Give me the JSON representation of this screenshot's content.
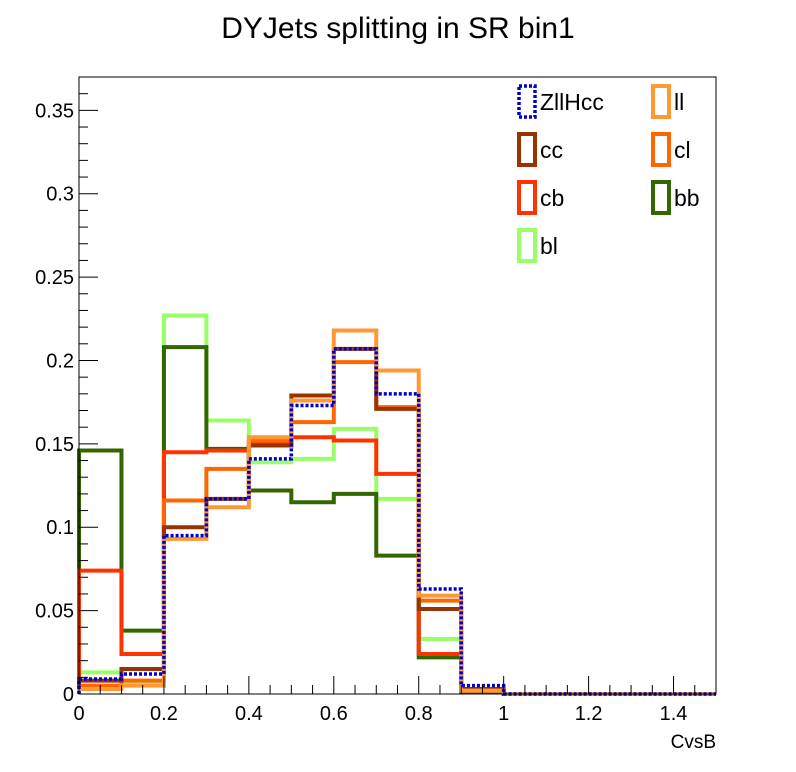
{
  "chart_data": {
    "type": "histogram",
    "title": "DYJets splitting in SR bin1",
    "xlabel": "CvsB",
    "ylabel": "",
    "xlim": [
      0,
      1.5
    ],
    "ylim": [
      0,
      0.37
    ],
    "bin_edges": [
      0,
      0.1,
      0.2,
      0.3,
      0.4,
      0.5,
      0.6,
      0.7,
      0.8,
      0.9,
      1.0,
      1.1,
      1.2,
      1.3,
      1.4,
      1.5
    ],
    "x_ticks": [
      "0",
      "0.2",
      "0.4",
      "0.6",
      "0.8",
      "1",
      "1.2",
      "1.4"
    ],
    "x_tick_values": [
      0,
      0.2,
      0.4,
      0.6,
      0.8,
      1.0,
      1.2,
      1.4
    ],
    "y_ticks": [
      "0",
      "0.05",
      "0.1",
      "0.15",
      "0.2",
      "0.25",
      "0.3",
      "0.35"
    ],
    "y_tick_values": [
      0,
      0.05,
      0.1,
      0.15,
      0.2,
      0.25,
      0.3,
      0.35
    ],
    "grid": false,
    "legend_position": "top-right",
    "series": [
      {
        "name": "ZllHcc",
        "color": "#0000cc",
        "dashed": true,
        "values": [
          0.009,
          0.012,
          0.095,
          0.117,
          0.141,
          0.173,
          0.207,
          0.18,
          0.063,
          0.005,
          0.0,
          0.0,
          0.0,
          0.0,
          0.0
        ]
      },
      {
        "name": "ll",
        "color": "#ff9933",
        "dashed": false,
        "values": [
          0.003,
          0.005,
          0.093,
          0.112,
          0.154,
          0.176,
          0.218,
          0.194,
          0.059,
          0.002,
          0.0,
          0.0,
          0.0,
          0.0,
          0.0
        ]
      },
      {
        "name": "cc",
        "color": "#993300",
        "dashed": false,
        "values": [
          0.008,
          0.015,
          0.1,
          0.117,
          0.149,
          0.179,
          0.207,
          0.171,
          0.051,
          0.003,
          0.0,
          0.0,
          0.0,
          0.0,
          0.0
        ]
      },
      {
        "name": "cl",
        "color": "#ff6600",
        "dashed": false,
        "values": [
          0.005,
          0.008,
          0.116,
          0.135,
          0.152,
          0.163,
          0.199,
          0.172,
          0.056,
          0.002,
          0.0,
          0.0,
          0.0,
          0.0,
          0.0
        ]
      },
      {
        "name": "cb",
        "color": "#ff3300",
        "dashed": false,
        "values": [
          0.074,
          0.024,
          0.145,
          0.146,
          0.151,
          0.154,
          0.152,
          0.132,
          0.024,
          0.002,
          0.0,
          0.0,
          0.0,
          0.0,
          0.0
        ]
      },
      {
        "name": "bb",
        "color": "#336600",
        "dashed": false,
        "values": [
          0.146,
          0.038,
          0.208,
          0.147,
          0.122,
          0.115,
          0.12,
          0.083,
          0.022,
          0.001,
          0.0,
          0.0,
          0.0,
          0.0,
          0.0
        ]
      },
      {
        "name": "bl",
        "color": "#99ff66",
        "dashed": false,
        "values": [
          0.013,
          0.007,
          0.227,
          0.164,
          0.139,
          0.141,
          0.159,
          0.117,
          0.033,
          0.001,
          0.0,
          0.0,
          0.0,
          0.0,
          0.0
        ]
      }
    ],
    "legend_order": [
      "ZllHcc",
      "ll",
      "cc",
      "cl",
      "cb",
      "bb",
      "bl"
    ]
  }
}
